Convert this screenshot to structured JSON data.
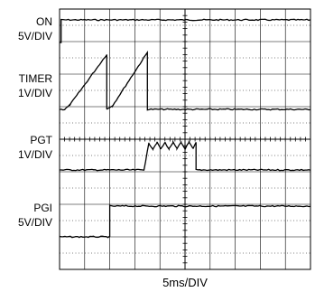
{
  "chart_data": {
    "type": "line",
    "xlabel": "5ms/DIV",
    "x_divisions": 10,
    "y_divisions": 8,
    "x_unit": "ms",
    "ms_per_div": 5,
    "grid": true,
    "channels": [
      {
        "name": "ON",
        "scale": "5V/DIV",
        "level_div": [
          1,
          0,
          1
        ],
        "points": [
          [
            0,
            0.0
          ],
          [
            0.3,
            0.0
          ],
          [
            0.3,
            1.0
          ],
          [
            50,
            1.0
          ]
        ]
      },
      {
        "name": "TIMER",
        "scale": "1V/DIV",
        "level_div": [
          1.3,
          0,
          1.5
        ],
        "points": [
          [
            0,
            0.0
          ],
          [
            1.0,
            0.0
          ],
          [
            2.0,
            0.1
          ],
          [
            9.4,
            1.35
          ],
          [
            9.4,
            0.0
          ],
          [
            10.6,
            0.1
          ],
          [
            17.5,
            1.4
          ],
          [
            17.5,
            0.0
          ],
          [
            50,
            0.0
          ]
        ]
      },
      {
        "name": "PGT",
        "scale": "1V/DIV",
        "level_div": [
          1,
          0,
          1
        ],
        "points": [
          [
            0,
            0.0
          ],
          [
            16.8,
            0.0
          ],
          [
            17.8,
            0.95
          ],
          [
            18.6,
            0.75
          ],
          [
            19.4,
            0.98
          ],
          [
            20.2,
            0.75
          ],
          [
            21.0,
            0.98
          ],
          [
            21.8,
            0.75
          ],
          [
            22.6,
            0.98
          ],
          [
            23.4,
            0.75
          ],
          [
            24.2,
            0.98
          ],
          [
            25.0,
            0.75
          ],
          [
            25.8,
            0.98
          ],
          [
            26.6,
            0.75
          ],
          [
            27.2,
            0.98
          ],
          [
            27.2,
            0.0
          ],
          [
            50,
            0.0
          ]
        ]
      },
      {
        "name": "PGI",
        "scale": "5V/DIV",
        "level_div": [
          1,
          0,
          1
        ],
        "points": [
          [
            0,
            0.0
          ],
          [
            10.0,
            0.0
          ],
          [
            10.0,
            1.0
          ],
          [
            50,
            1.0
          ]
        ]
      }
    ]
  }
}
